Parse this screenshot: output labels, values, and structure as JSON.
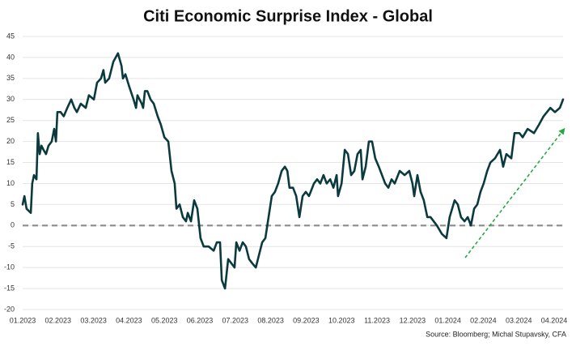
{
  "chart_data": {
    "type": "line",
    "title": "Citi Economic Surprise Index - Global",
    "source": "Source: Bloomberg; Michal Stupavsky, CFA",
    "xlim": [
      0,
      15.25
    ],
    "xticks": [
      {
        "value": 0,
        "label": "01.2023"
      },
      {
        "value": 1,
        "label": "02.2023"
      },
      {
        "value": 2,
        "label": "03.2023"
      },
      {
        "value": 3,
        "label": "04.2023"
      },
      {
        "value": 4,
        "label": "05.2023"
      },
      {
        "value": 5,
        "label": "06.2023"
      },
      {
        "value": 6,
        "label": "07.2023"
      },
      {
        "value": 7,
        "label": "08.2023"
      },
      {
        "value": 8,
        "label": "09.2023"
      },
      {
        "value": 9,
        "label": "10.2023"
      },
      {
        "value": 10,
        "label": "11.2023"
      },
      {
        "value": 11,
        "label": "12.2023"
      },
      {
        "value": 12,
        "label": "01.2024"
      },
      {
        "value": 13,
        "label": "02.2024"
      },
      {
        "value": 14,
        "label": "03.2024"
      },
      {
        "value": 15,
        "label": "04.2024"
      }
    ],
    "ylim": [
      -20,
      45
    ],
    "yticks": [
      -20,
      -15,
      -10,
      -5,
      0,
      5,
      10,
      15,
      20,
      25,
      30,
      35,
      40,
      45
    ],
    "grid": true,
    "x": [
      0,
      0.05,
      0.11,
      0.23,
      0.27,
      0.32,
      0.39,
      0.43,
      0.48,
      0.53,
      0.59,
      0.66,
      0.73,
      0.82,
      0.89,
      0.94,
      0.98,
      1.07,
      1.16,
      1.26,
      1.37,
      1.46,
      1.53,
      1.64,
      1.78,
      1.87,
      2.01,
      2.1,
      2.21,
      2.28,
      2.33,
      2.44,
      2.56,
      2.69,
      2.79,
      2.83,
      2.9,
      3.01,
      3.13,
      3.2,
      3.24,
      3.36,
      3.4,
      3.45,
      3.52,
      3.61,
      3.7,
      3.81,
      3.9,
      4.0,
      4.11,
      4.2,
      4.29,
      4.34,
      4.43,
      4.52,
      4.61,
      4.66,
      4.75,
      4.84,
      4.93,
      5.02,
      5.11,
      5.25,
      5.39,
      5.48,
      5.57,
      5.62,
      5.71,
      5.8,
      5.89,
      5.98,
      6.03,
      6.12,
      6.21,
      6.3,
      6.39,
      6.48,
      6.58,
      6.67,
      6.76,
      6.85,
      6.94,
      7.03,
      7.12,
      7.21,
      7.31,
      7.4,
      7.47,
      7.53,
      7.63,
      7.72,
      7.81,
      7.9,
      7.99,
      8.08,
      8.22,
      8.31,
      8.4,
      8.49,
      8.58,
      8.68,
      8.77,
      8.86,
      8.9,
      9.0,
      9.09,
      9.18,
      9.27,
      9.36,
      9.45,
      9.54,
      9.59,
      9.68,
      9.77,
      9.86,
      9.95,
      10.05,
      10.14,
      10.23,
      10.32,
      10.41,
      10.5,
      10.64,
      10.78,
      10.91,
      11.0,
      11.05,
      11.14,
      11.23,
      11.32,
      11.42,
      11.51,
      11.69,
      11.83,
      11.96,
      12.05,
      12.19,
      12.28,
      12.37,
      12.47,
      12.56,
      12.65,
      12.74,
      12.83,
      12.92,
      13.01,
      13.11,
      13.2,
      13.33,
      13.47,
      13.56,
      13.65,
      13.79,
      13.88,
      14.02,
      14.11,
      14.25,
      14.43,
      14.57,
      14.7,
      14.89,
      15.02,
      15.16,
      15.25
    ],
    "series": [
      {
        "color": "#0b3a3e",
        "values": [
          5,
          7,
          4,
          3,
          10,
          12,
          11,
          22,
          17,
          19,
          18,
          17,
          19,
          20,
          23,
          20,
          27,
          27,
          26,
          28,
          30,
          28,
          27,
          29,
          28,
          31,
          30,
          34,
          35,
          37,
          34,
          35,
          39,
          41,
          38,
          35,
          36,
          33,
          30,
          28,
          31,
          29,
          28,
          32,
          32,
          30,
          29,
          26,
          24,
          21,
          20,
          13,
          10,
          4,
          5,
          2,
          1,
          3,
          1,
          6,
          4,
          -3,
          -5,
          -5,
          -6,
          -4,
          -4,
          -13,
          -15,
          -8,
          -9,
          -10,
          -4,
          -6,
          -4,
          -5,
          -8,
          -9,
          -10,
          -7,
          -4,
          -3,
          2,
          7,
          8,
          10,
          13,
          14,
          13,
          9,
          9,
          7,
          2,
          7,
          8,
          7,
          10,
          11,
          10,
          12,
          10,
          11,
          9,
          12,
          7,
          10,
          18,
          17,
          12,
          13,
          17,
          18,
          11,
          14,
          20,
          20,
          16,
          14,
          12,
          10,
          9,
          11,
          10,
          13,
          12,
          13,
          10,
          7,
          12,
          8,
          6,
          2,
          2,
          0,
          -2,
          -3,
          2,
          6,
          5,
          2,
          1,
          2,
          0,
          4,
          5,
          8,
          10,
          13,
          15,
          16,
          18,
          14,
          17,
          16,
          22,
          22,
          21,
          23,
          22,
          24,
          26,
          28,
          27,
          28,
          30
        ]
      }
    ]
  }
}
